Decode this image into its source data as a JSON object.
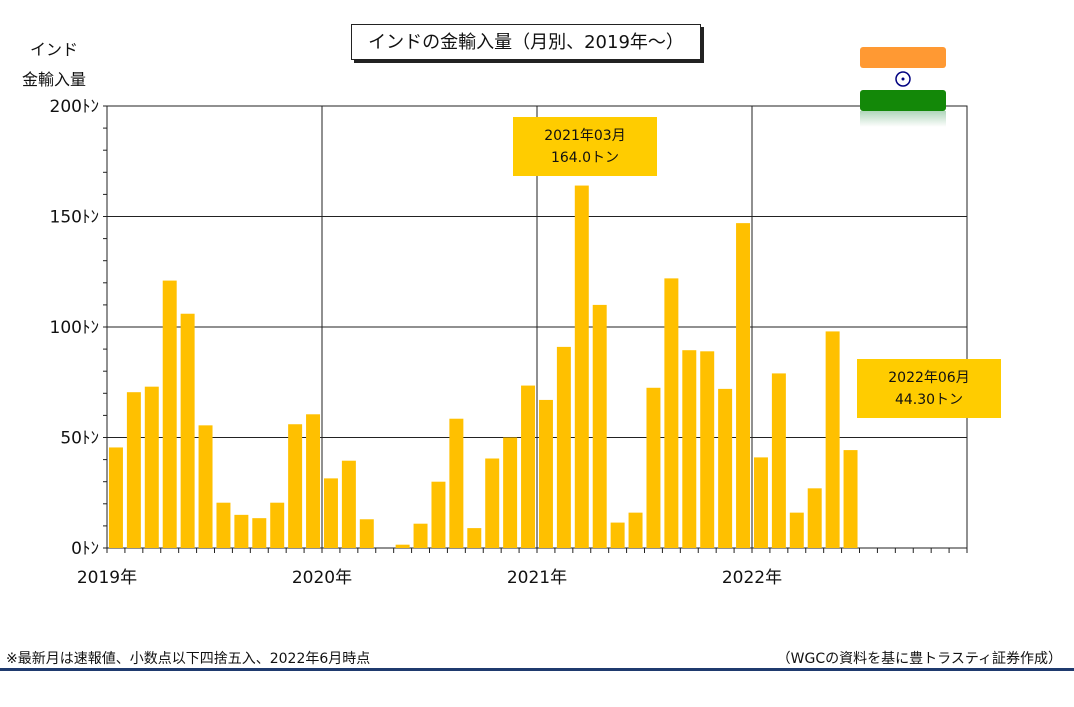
{
  "chart_data": {
    "type": "bar",
    "title": "インドの金輸入量（月別、2019年～）",
    "ylabel_lines": [
      "インド",
      "金輸入量"
    ],
    "ylim": [
      0,
      200
    ],
    "yticks": [
      {
        "value": 0,
        "label": "0ﾄﾝ"
      },
      {
        "value": 50,
        "label": "50ﾄﾝ"
      },
      {
        "value": 100,
        "label": "100ﾄﾝ"
      },
      {
        "value": 150,
        "label": "150ﾄﾝ"
      },
      {
        "value": 200,
        "label": "200ﾄﾝ"
      }
    ],
    "year_labels": [
      "2019年",
      "2020年",
      "2021年",
      "2022年"
    ],
    "months_total": 48,
    "start": "2019-01",
    "values": [
      45.5,
      70.5,
      73,
      121,
      106,
      55.5,
      20.5,
      15,
      13.5,
      20.5,
      56,
      60.5,
      31.5,
      39.5,
      13,
      0,
      1.5,
      11,
      30,
      58.5,
      9,
      40.5,
      50,
      73.5,
      67,
      91,
      164.0,
      110,
      11.5,
      16,
      72.5,
      122,
      89.5,
      89,
      72,
      147,
      41,
      79,
      16,
      27,
      98,
      44.3
    ],
    "bar_color": "#ffc000",
    "grid": true,
    "annotations": [
      {
        "line1": "2021年03月",
        "line2": "164.0トン"
      },
      {
        "line1": "2022年06月",
        "line2": "44.30トン"
      }
    ]
  },
  "footnote": "※最新月は速報値、小数点以下四捨五入、2022年6月時点",
  "source": "（WGCの資料を基に豊トラスティ証券作成）",
  "flag_icon": "india-flag-icon",
  "rule_color": "#1f3a6e"
}
